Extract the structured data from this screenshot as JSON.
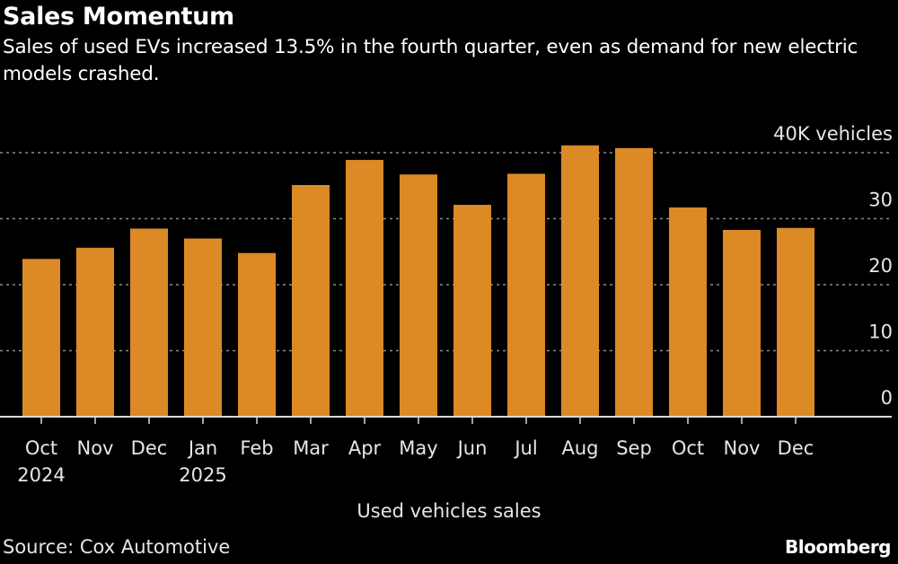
{
  "header": {
    "title": "Sales Momentum",
    "subtitle": "Sales of used EVs increased 13.5% in the fourth quarter, even as demand for new electric models crashed."
  },
  "footer": {
    "source": "Source: Cox Automotive",
    "brand": "Bloomberg"
  },
  "colors": {
    "bar": "#DB8A25",
    "background": "#000000",
    "grid": "#8a8a8a",
    "axis": "#d9d9d9",
    "text": "#e6e6e6"
  },
  "chart_data": {
    "type": "bar",
    "title": "Sales Momentum",
    "subtitle": "Sales of used EVs increased 13.5% in the fourth quarter, even as demand for new electric models crashed.",
    "xlabel": "",
    "ylabel": "",
    "y_unit_label": "40K vehicles",
    "ylim": [
      0,
      40
    ],
    "yticks": [
      0,
      10,
      20,
      30,
      40
    ],
    "ytick_labels": [
      "0",
      "10",
      "20",
      "30",
      "40K vehicles"
    ],
    "y_axis_position": "right",
    "grid": true,
    "legend": {
      "position": "bottom-center",
      "entries": [
        "Used vehicles sales"
      ]
    },
    "categories": [
      "Oct",
      "Nov",
      "Dec",
      "Jan",
      "Feb",
      "Mar",
      "Apr",
      "May",
      "Jun",
      "Jul",
      "Aug",
      "Sep",
      "Oct",
      "Nov",
      "Dec"
    ],
    "category_sublabels": [
      "2024",
      "",
      "",
      "2025",
      "",
      "",
      "",
      "",
      "",
      "",
      "",
      "",
      "",
      "",
      ""
    ],
    "series": [
      {
        "name": "Used vehicles sales",
        "values": [
          23.9,
          25.6,
          28.5,
          27.0,
          24.8,
          35.1,
          38.9,
          36.7,
          32.1,
          36.8,
          41.1,
          40.7,
          31.7,
          28.3,
          28.6
        ]
      }
    ],
    "source": "Source: Cox Automotive"
  }
}
